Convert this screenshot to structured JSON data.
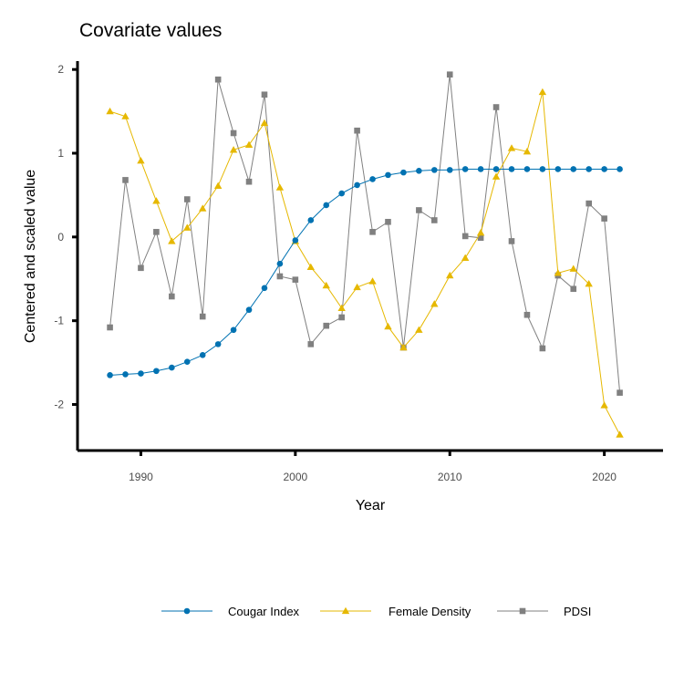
{
  "chart_data": {
    "type": "line",
    "title": "Covariate values",
    "xlabel": "Year",
    "ylabel": "Centered and scaled value",
    "xlim": [
      1985.9,
      2023.8
    ],
    "ylim": [
      -2.55,
      2.1
    ],
    "xticks": [
      1990,
      2000,
      2010,
      2020
    ],
    "yticks": [
      -2,
      -1,
      0,
      1,
      2
    ],
    "grid": false,
    "legend_position": "bottom",
    "x": [
      1988,
      1989,
      1990,
      1991,
      1992,
      1993,
      1994,
      1995,
      1996,
      1997,
      1998,
      1999,
      2000,
      2001,
      2002,
      2003,
      2004,
      2005,
      2006,
      2007,
      2008,
      2009,
      2010,
      2011,
      2012,
      2013,
      2014,
      2015,
      2016,
      2017,
      2018,
      2019,
      2020,
      2021
    ],
    "series": [
      {
        "name": "Cougar Index",
        "color": "#0072B2",
        "marker": "circle",
        "values": [
          -1.65,
          -1.64,
          -1.63,
          -1.6,
          -1.56,
          -1.49,
          -1.41,
          -1.28,
          -1.11,
          -0.87,
          -0.61,
          -0.32,
          -0.04,
          0.2,
          0.38,
          0.52,
          0.62,
          0.69,
          0.74,
          0.77,
          0.79,
          0.8,
          0.8,
          0.81,
          0.81,
          0.81,
          0.81,
          0.81,
          0.81,
          0.81,
          0.81,
          0.81,
          0.81,
          0.81
        ]
      },
      {
        "name": "Female Density",
        "color": "#E6B800",
        "marker": "triangle",
        "values": [
          1.5,
          1.44,
          0.91,
          0.43,
          -0.05,
          0.11,
          0.34,
          0.61,
          1.04,
          1.1,
          1.36,
          0.59,
          -0.05,
          -0.36,
          -0.58,
          -0.85,
          -0.6,
          -0.53,
          -1.07,
          -1.32,
          -1.11,
          -0.8,
          -0.46,
          -0.25,
          0.05,
          0.72,
          1.06,
          1.02,
          1.73,
          -0.43,
          -0.38,
          -0.56,
          -2.01,
          -2.36
        ]
      },
      {
        "name": "PDSI",
        "color": "#808080",
        "marker": "square",
        "values": [
          -1.08,
          0.68,
          -0.37,
          0.06,
          -0.71,
          0.45,
          -0.95,
          1.88,
          1.24,
          0.66,
          1.7,
          -0.47,
          -0.51,
          -1.28,
          -1.06,
          -0.96,
          1.27,
          0.06,
          0.18,
          -1.32,
          0.32,
          0.2,
          1.94,
          0.01,
          -0.01,
          1.55,
          -0.05,
          -0.93,
          -1.33,
          -0.46,
          -0.62,
          0.4,
          0.22,
          -1.86
        ]
      }
    ]
  }
}
